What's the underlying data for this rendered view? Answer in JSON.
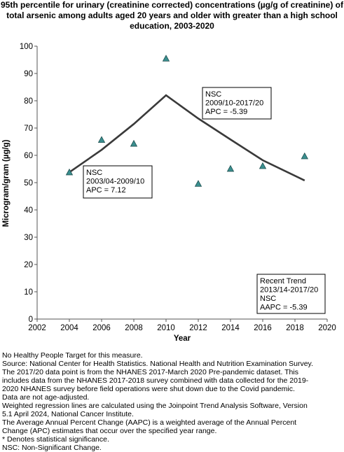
{
  "chart_data": {
    "type": "line",
    "title_lines": [
      "95th percentile for urinary (creatinine corrected) concentrations (µg/g of creatinine) of",
      "total arsenic among adults aged 20 years and older with greater than a high school",
      "education, 2003-2020"
    ],
    "xlabel": "Year",
    "ylabel": "Microgram/gram (µg/g)",
    "xlim": [
      2002,
      2020
    ],
    "ylim": [
      0,
      100
    ],
    "x_ticks": [
      2002,
      2004,
      2006,
      2008,
      2010,
      2012,
      2014,
      2016,
      2018,
      2020
    ],
    "y_ticks": [
      0,
      10,
      20,
      30,
      40,
      50,
      60,
      70,
      80,
      90,
      100
    ],
    "marker_color": "#3a8f8f",
    "line_color": "#3a3a3a",
    "points": [
      {
        "x": 2004,
        "y": 53.8
      },
      {
        "x": 2006,
        "y": 65.7
      },
      {
        "x": 2008,
        "y": 64.3
      },
      {
        "x": 2010,
        "y": 95.5
      },
      {
        "x": 2012,
        "y": 49.6
      },
      {
        "x": 2014,
        "y": 55.1
      },
      {
        "x": 2016,
        "y": 56.1
      },
      {
        "x": 2018.6,
        "y": 59.7
      }
    ],
    "trend_line": [
      {
        "x": 2004,
        "y": 53.8
      },
      {
        "x": 2006,
        "y": 62
      },
      {
        "x": 2008,
        "y": 71.5
      },
      {
        "x": 2010,
        "y": 82
      },
      {
        "x": 2012,
        "y": 73.5
      },
      {
        "x": 2014,
        "y": 65.8
      },
      {
        "x": 2016,
        "y": 58.2
      },
      {
        "x": 2018.6,
        "y": 50.8
      }
    ],
    "annotations": [
      {
        "lines": [
          "NSC",
          "2003/04-2009/10",
          "APC =  7.12"
        ]
      },
      {
        "lines": [
          "NSC",
          "2009/10-2017/20",
          "APC = -5.39"
        ]
      },
      {
        "lines": [
          "Recent Trend",
          "2013/14-2017/20",
          "NSC",
          "AAPC = -5.39"
        ]
      }
    ]
  },
  "footnotes": [
    "No Healthy People Target for this measure.",
    "Source: National Center for Health Statistics. National Health and Nutrition Examination Survey.",
    "The 2017/20 data point is from the NHANES 2017-March 2020 Pre-pandemic dataset. This",
    "includes data from the NHANES 2017-2018 survey combined with data collected for the 2019-",
    "2020 NHANES survey before field operations were shut down due to the Covid pandemic.",
    "Data are not age-adjusted.",
    "Weighted regression lines are calculated using the Joinpoint Trend Analysis Software, Version",
    "5.1 April 2024, National Cancer Institute.",
    "The Average Annual Percent Change (AAPC) is a weighted average of the Annual Percent",
    "Change (APC) estimates that occur over the specified year range.",
    "* Denotes statistical significance.",
    "NSC: Non-Significant Change."
  ]
}
